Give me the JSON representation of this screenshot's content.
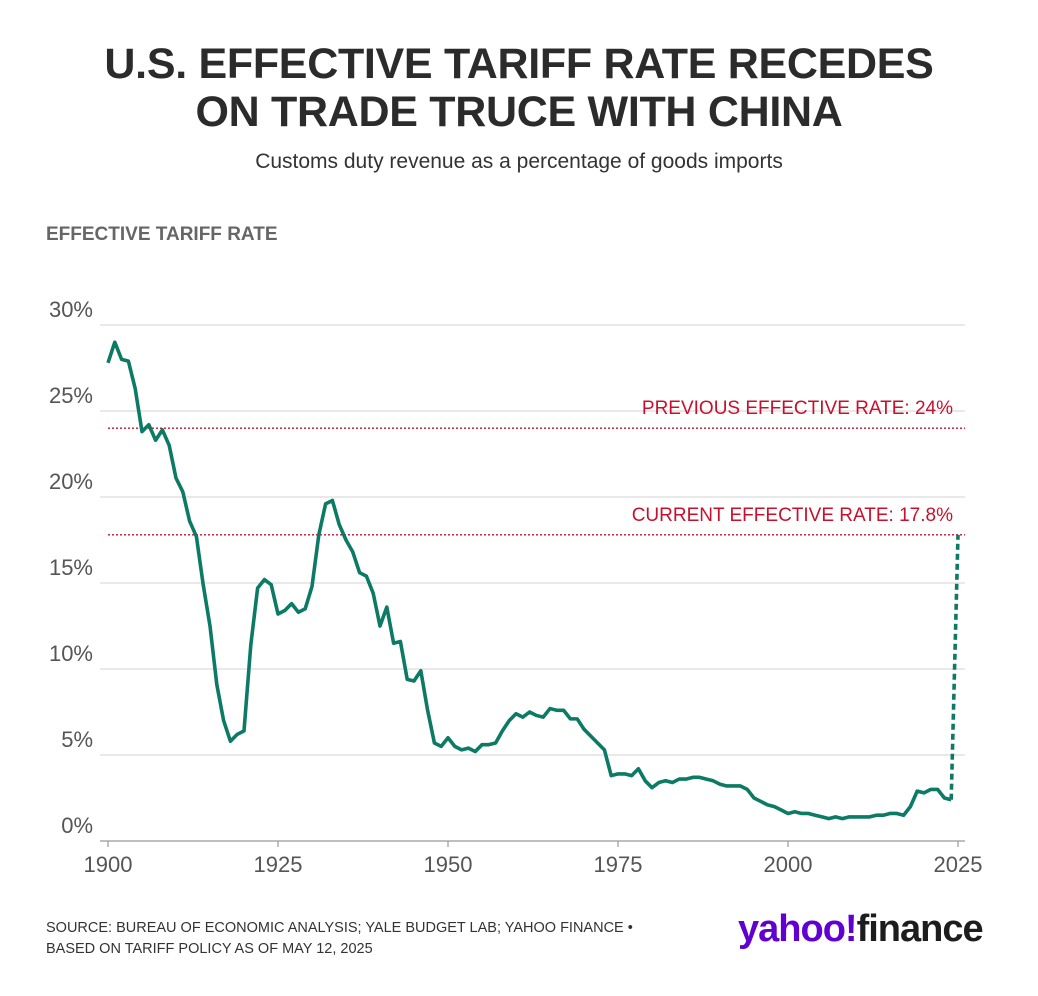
{
  "chart_data": {
    "type": "line",
    "title": [
      "U.S. EFFECTIVE TARIFF RATE RECEDES",
      "ON TRADE TRUCE WITH CHINA"
    ],
    "subtitle": "Customs duty revenue as a percentage of goods imports",
    "y_label": "EFFECTIVE TARIFF RATE",
    "source": [
      "SOURCE: BUREAU OF ECONOMIC ANALYSIS; YALE BUDGET LAB; YAHOO FINANCE •",
      "BASED ON TARIFF POLICY AS OF MAY 12, 2025"
    ],
    "logo": {
      "brand": "yahoo!",
      "product": "finance"
    },
    "xlim": [
      1900,
      2025
    ],
    "ylim": [
      0,
      30
    ],
    "xticks": [
      1900,
      1925,
      1950,
      1975,
      2000,
      2025
    ],
    "yticks": [
      {
        "value": 0,
        "label": "0%"
      },
      {
        "value": 5,
        "label": "5%"
      },
      {
        "value": 10,
        "label": "10%"
      },
      {
        "value": 15,
        "label": "15%"
      },
      {
        "value": 20,
        "label": "20%"
      },
      {
        "value": 25,
        "label": "25%"
      },
      {
        "value": 30,
        "label": "30%"
      }
    ],
    "grid": true,
    "reference_lines": [
      {
        "value": 24,
        "label": "PREVIOUS EFFECTIVE RATE: 24%",
        "color": "#c8102e"
      },
      {
        "value": 17.8,
        "label": "CURRENT EFFECTIVE RATE: 17.8%",
        "color": "#c8102e"
      }
    ],
    "series": [
      {
        "color": "#0d7a66",
        "style": "solid",
        "x": [
          1900,
          1901,
          1902,
          1903,
          1904,
          1905,
          1906,
          1907,
          1908,
          1909,
          1910,
          1911,
          1912,
          1913,
          1914,
          1915,
          1916,
          1917,
          1918,
          1919,
          1920,
          1921,
          1922,
          1923,
          1924,
          1925,
          1926,
          1927,
          1928,
          1929,
          1930,
          1931,
          1932,
          1933,
          1934,
          1935,
          1936,
          1937,
          1938,
          1939,
          1940,
          1941,
          1942,
          1943,
          1944,
          1945,
          1946,
          1947,
          1948,
          1949,
          1950,
          1951,
          1952,
          1953,
          1954,
          1955,
          1956,
          1957,
          1958,
          1959,
          1960,
          1961,
          1962,
          1963,
          1964,
          1965,
          1966,
          1967,
          1968,
          1969,
          1970,
          1971,
          1972,
          1973,
          1974,
          1975,
          1976,
          1977,
          1978,
          1979,
          1980,
          1981,
          1982,
          1983,
          1984,
          1985,
          1986,
          1987,
          1988,
          1989,
          1990,
          1991,
          1992,
          1993,
          1994,
          1995,
          1996,
          1997,
          1998,
          1999,
          2000,
          2001,
          2002,
          2003,
          2004,
          2005,
          2006,
          2007,
          2008,
          2009,
          2010,
          2011,
          2012,
          2013,
          2014,
          2015,
          2016,
          2017,
          2018,
          2019,
          2020,
          2021,
          2022,
          2023,
          2024
        ],
        "values": [
          27.8,
          29.0,
          28.0,
          27.9,
          26.3,
          23.8,
          24.2,
          23.3,
          23.9,
          23.0,
          21.1,
          20.3,
          18.6,
          17.7,
          14.9,
          12.5,
          9.1,
          7.0,
          5.8,
          6.2,
          6.4,
          11.4,
          14.7,
          15.2,
          14.9,
          13.2,
          13.4,
          13.8,
          13.3,
          13.5,
          14.8,
          17.8,
          19.6,
          19.8,
          18.4,
          17.5,
          16.8,
          15.6,
          15.4,
          14.4,
          12.5,
          13.6,
          11.5,
          11.6,
          9.4,
          9.3,
          9.9,
          7.6,
          5.7,
          5.5,
          6.0,
          5.5,
          5.3,
          5.4,
          5.2,
          5.6,
          5.6,
          5.7,
          6.4,
          7.0,
          7.4,
          7.2,
          7.5,
          7.3,
          7.2,
          7.7,
          7.6,
          7.6,
          7.1,
          7.1,
          6.5,
          6.1,
          5.7,
          5.3,
          3.8,
          3.9,
          3.9,
          3.8,
          4.2,
          3.5,
          3.1,
          3.4,
          3.5,
          3.4,
          3.6,
          3.6,
          3.7,
          3.7,
          3.6,
          3.5,
          3.3,
          3.2,
          3.2,
          3.2,
          3.0,
          2.5,
          2.3,
          2.1,
          2.0,
          1.8,
          1.6,
          1.7,
          1.6,
          1.6,
          1.5,
          1.4,
          1.3,
          1.4,
          1.3,
          1.4,
          1.4,
          1.4,
          1.4,
          1.5,
          1.5,
          1.6,
          1.6,
          1.5,
          2.0,
          2.9,
          2.8,
          3.0,
          3.0,
          2.5,
          2.4
        ]
      },
      {
        "color": "#0d7a66",
        "style": "dashed",
        "x": [
          2024,
          2025
        ],
        "values": [
          2.4,
          17.8
        ]
      }
    ]
  }
}
